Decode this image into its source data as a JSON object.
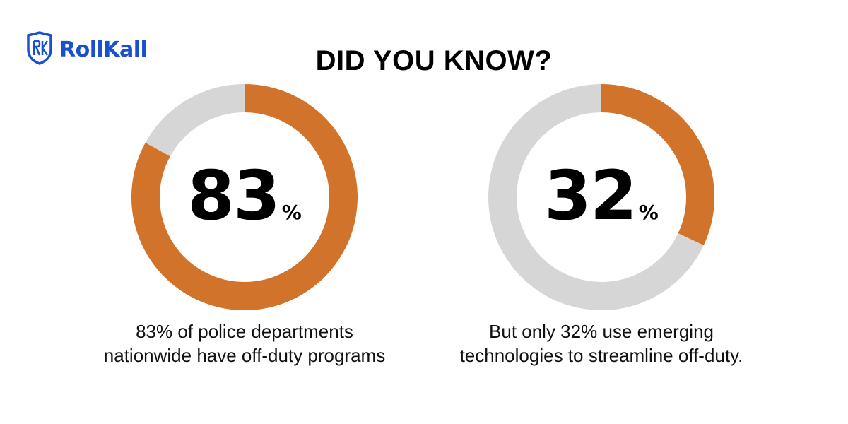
{
  "brand": {
    "name": "RollKall",
    "color": "#1a4fd0",
    "logo_icon": "shield-rk-logo-icon"
  },
  "headline": "DID YOU KNOW?",
  "colors": {
    "highlight": "#d2732b",
    "remainder": "#d6d6d6"
  },
  "chart_data": [
    {
      "type": "pie",
      "style": "donut",
      "value": 83,
      "remainder": 17,
      "center_value": "83",
      "center_unit": "%",
      "caption_lines": [
        "83% of police departments",
        "nationwide have off-duty programs"
      ]
    },
    {
      "type": "pie",
      "style": "donut",
      "value": 32,
      "remainder": 68,
      "center_value": "32",
      "center_unit": "%",
      "caption_lines": [
        "But only 32% use emerging",
        "technologies to streamline off-duty."
      ]
    }
  ]
}
